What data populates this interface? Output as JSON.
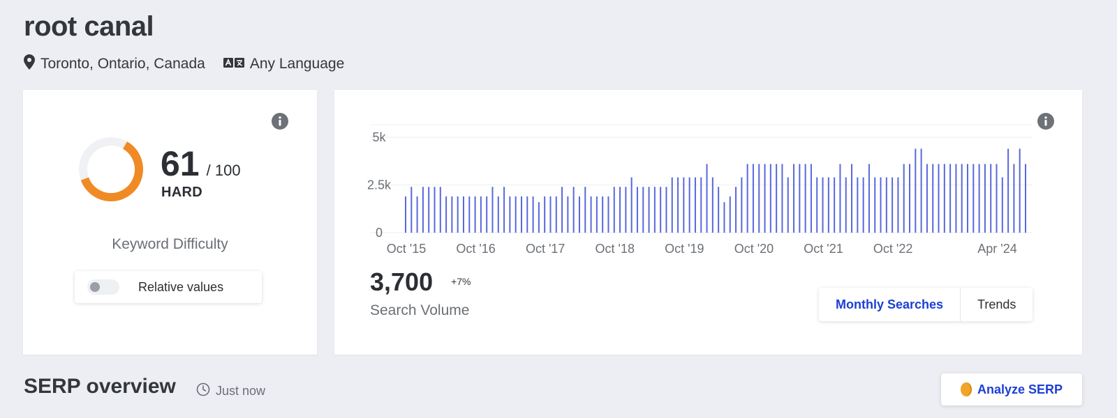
{
  "header": {
    "keyword": "root canal",
    "location": "Toronto, Ontario, Canada",
    "language": "Any Language"
  },
  "difficulty": {
    "score": "61",
    "max": "/ 100",
    "fraction": 0.61,
    "level": "HARD",
    "label": "Keyword Difficulty",
    "relative_toggle_label": "Relative values",
    "relative_toggle_on": false,
    "gauge_color": "#f08a24",
    "gauge_track_color": "#f0f1f4"
  },
  "volume": {
    "value": "3,700",
    "change": "+7%",
    "label": "Search Volume",
    "tabs": [
      {
        "label": "Monthly Searches",
        "active": true
      },
      {
        "label": "Trends",
        "active": false
      }
    ]
  },
  "serp": {
    "title": "SERP overview",
    "updated": "Just now",
    "analyze_button": "Analyze SERP"
  },
  "colors": {
    "accent": "#1c3fd3",
    "bar": "#5868db"
  },
  "chart_data": {
    "type": "bar",
    "ylim": [
      0,
      5000
    ],
    "y_ticks": [
      {
        "value": 0,
        "label": "0"
      },
      {
        "value": 2500,
        "label": "2.5k"
      },
      {
        "value": 5000,
        "label": "5k"
      }
    ],
    "x_tick_labels": [
      "Oct '15",
      "Oct '16",
      "Oct '17",
      "Oct '18",
      "Oct '19",
      "Oct '20",
      "Oct '21",
      "Oct '22",
      "Apr '24"
    ],
    "x_tick_indices": [
      0,
      12,
      24,
      36,
      48,
      60,
      72,
      84,
      102
    ],
    "x_start": "2015-10",
    "series": [
      {
        "values": [
          1900,
          2400,
          1900,
          2400,
          2400,
          2400,
          2400,
          1900,
          1900,
          1900,
          1900,
          1900,
          1900,
          1900,
          1900,
          2400,
          1900,
          2400,
          1900,
          1900,
          1900,
          1900,
          1900,
          1600,
          1900,
          1900,
          1900,
          2400,
          1900,
          2400,
          1900,
          2400,
          1900,
          1900,
          1900,
          1900,
          2400,
          2400,
          2400,
          2900,
          2400,
          2400,
          2400,
          2400,
          2400,
          2400,
          2900,
          2900,
          2900,
          2900,
          2900,
          2900,
          3600,
          2900,
          2400,
          1600,
          1900,
          2400,
          2900,
          3600,
          3600,
          3600,
          3600,
          3600,
          3600,
          3600,
          2900,
          3600,
          3600,
          3600,
          3600,
          2900,
          2900,
          2900,
          2900,
          3600,
          2900,
          3600,
          2900,
          2900,
          3600,
          2900,
          2900,
          2900,
          2900,
          2900,
          3600,
          3600,
          4400,
          4400,
          3600,
          3600,
          3600,
          3600,
          3600,
          3600,
          3600,
          3600,
          3600,
          3600,
          3600,
          3600,
          3600,
          2900,
          4400,
          3600,
          4400,
          3600
        ]
      }
    ]
  }
}
